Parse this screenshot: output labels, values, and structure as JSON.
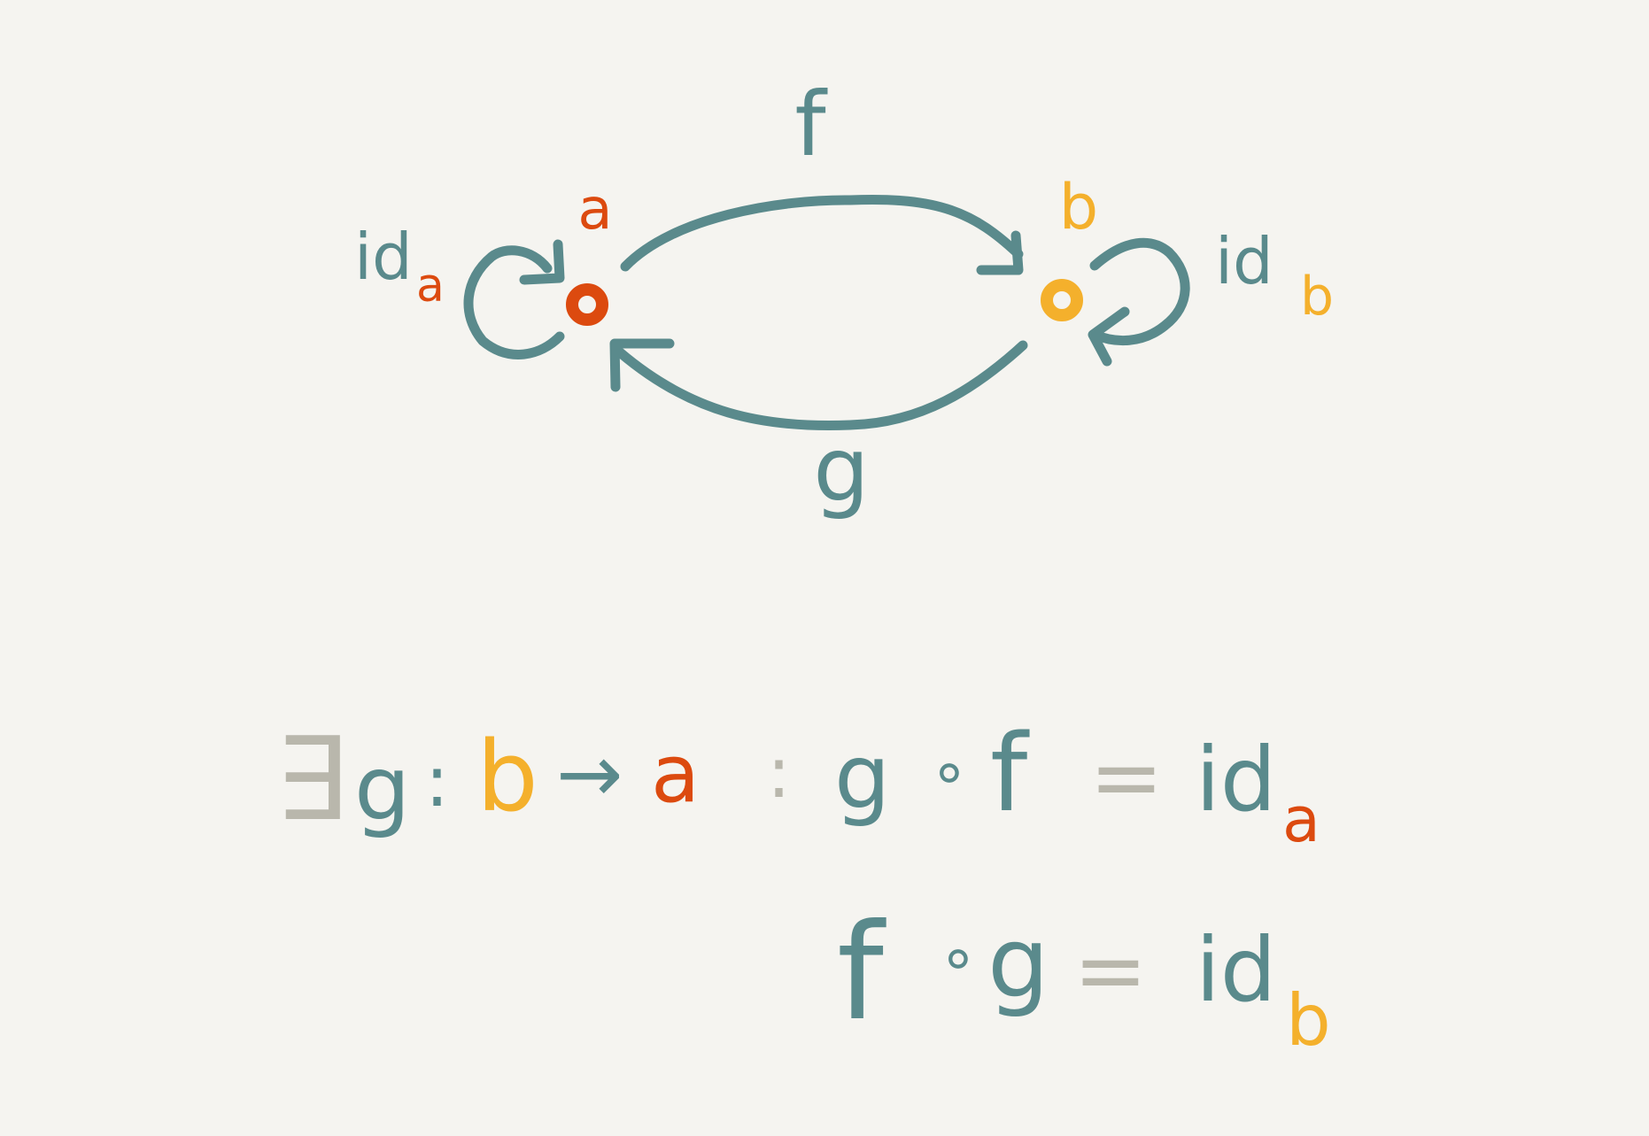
{
  "colors": {
    "background": "#f5f4f0",
    "morphism": "#5a8a8c",
    "object_a": "#dc4a0f",
    "object_b": "#f4b02c",
    "symbol": "#b9b7ac"
  },
  "diagram": {
    "object_a": {
      "label": "a"
    },
    "object_b": {
      "label": "b"
    },
    "arrow_f": {
      "label": "f"
    },
    "arrow_g": {
      "label": "g"
    },
    "id_a": {
      "prefix": "id",
      "subscript": "a"
    },
    "id_b": {
      "prefix": "id",
      "subscript": "b"
    }
  },
  "formula": {
    "line1": {
      "exists": "∃",
      "var": "g",
      "colon": ":",
      "domain": "b",
      "arrow": "→",
      "codomain": "a",
      "such_that": ":",
      "lhs_g": "g",
      "compose": "∘",
      "lhs_f": "f",
      "equals": "=",
      "rhs_prefix": "id",
      "rhs_subscript": "a"
    },
    "line2": {
      "lhs_f": "f",
      "compose": "∘",
      "lhs_g": "g",
      "equals": "=",
      "rhs_prefix": "id",
      "rhs_subscript": "b"
    }
  }
}
